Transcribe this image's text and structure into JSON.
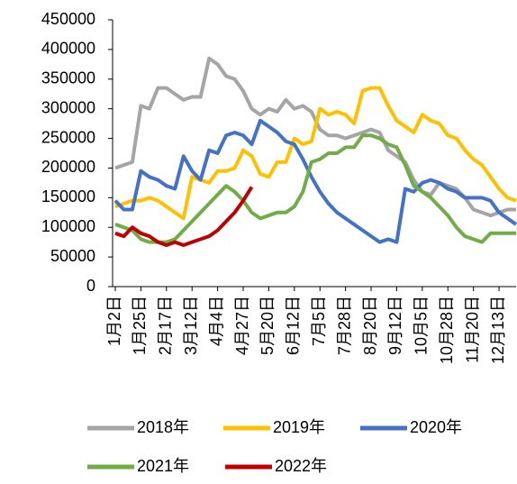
{
  "chart_data": {
    "type": "line",
    "categories": [
      "1月2日",
      null,
      null,
      "1月25日",
      null,
      null,
      "2月17日",
      null,
      null,
      "3月12日",
      null,
      null,
      "4月4日",
      null,
      null,
      "4月27日",
      null,
      null,
      "5月20日",
      null,
      null,
      "6月12日",
      null,
      null,
      "7月5日",
      null,
      null,
      "7月28日",
      null,
      null,
      "8月20日",
      null,
      null,
      "9月12日",
      null,
      null,
      "10月5日",
      null,
      null,
      "10月28日",
      null,
      null,
      "11月20日",
      null,
      null,
      "12月13日",
      null,
      null
    ],
    "series": [
      {
        "name": "2018年",
        "color": "#a5a5a5",
        "values": [
          200000,
          205000,
          210000,
          305000,
          300000,
          335000,
          335000,
          325000,
          315000,
          320000,
          320000,
          385000,
          375000,
          355000,
          350000,
          330000,
          300000,
          290000,
          300000,
          295000,
          315000,
          300000,
          305000,
          295000,
          265000,
          255000,
          255000,
          250000,
          255000,
          260000,
          265000,
          260000,
          230000,
          220000,
          210000,
          180000,
          160000,
          155000,
          175000,
          170000,
          165000,
          150000,
          130000,
          125000,
          120000,
          125000,
          130000,
          130000
        ]
      },
      {
        "name": "2019年",
        "color": "#ffc000",
        "values": [
          135000,
          140000,
          145000,
          145000,
          150000,
          145000,
          135000,
          125000,
          115000,
          185000,
          180000,
          175000,
          195000,
          195000,
          200000,
          230000,
          220000,
          190000,
          185000,
          210000,
          210000,
          250000,
          240000,
          245000,
          300000,
          290000,
          295000,
          290000,
          275000,
          330000,
          335000,
          335000,
          305000,
          280000,
          270000,
          260000,
          290000,
          280000,
          275000,
          255000,
          250000,
          230000,
          215000,
          205000,
          185000,
          165000,
          150000,
          145000
        ]
      },
      {
        "name": "2020年",
        "color": "#4472c4",
        "values": [
          145000,
          130000,
          130000,
          195000,
          185000,
          180000,
          170000,
          165000,
          220000,
          195000,
          180000,
          230000,
          225000,
          255000,
          260000,
          255000,
          240000,
          280000,
          270000,
          260000,
          245000,
          240000,
          215000,
          185000,
          160000,
          140000,
          125000,
          115000,
          105000,
          95000,
          85000,
          75000,
          80000,
          75000,
          165000,
          160000,
          175000,
          180000,
          175000,
          165000,
          160000,
          150000,
          150000,
          150000,
          145000,
          125000,
          115000,
          105000
        ]
      },
      {
        "name": "2021年",
        "color": "#70ad47",
        "values": [
          105000,
          100000,
          95000,
          80000,
          75000,
          75000,
          75000,
          80000,
          95000,
          110000,
          125000,
          140000,
          155000,
          170000,
          160000,
          145000,
          125000,
          115000,
          120000,
          125000,
          125000,
          135000,
          160000,
          210000,
          215000,
          225000,
          225000,
          235000,
          235000,
          255000,
          255000,
          250000,
          240000,
          235000,
          205000,
          170000,
          160000,
          150000,
          135000,
          120000,
          100000,
          85000,
          80000,
          75000,
          90000,
          90000,
          90000,
          90000
        ]
      },
      {
        "name": "2022年",
        "color": "#c00000",
        "values": [
          90000,
          85000,
          100000,
          90000,
          85000,
          75000,
          70000,
          75000,
          70000,
          75000,
          80000,
          85000,
          95000,
          110000,
          125000,
          145000,
          168000,
          null,
          null,
          null,
          null,
          null,
          null,
          null,
          null,
          null,
          null,
          null,
          null,
          null,
          null,
          null,
          null,
          null,
          null,
          null,
          null,
          null,
          null,
          null,
          null,
          null,
          null,
          null,
          null,
          null,
          null,
          null
        ]
      }
    ],
    "ylim": [
      0,
      450000
    ],
    "yticks": [
      0,
      50000,
      100000,
      150000,
      200000,
      250000,
      300000,
      350000,
      400000,
      450000
    ]
  }
}
